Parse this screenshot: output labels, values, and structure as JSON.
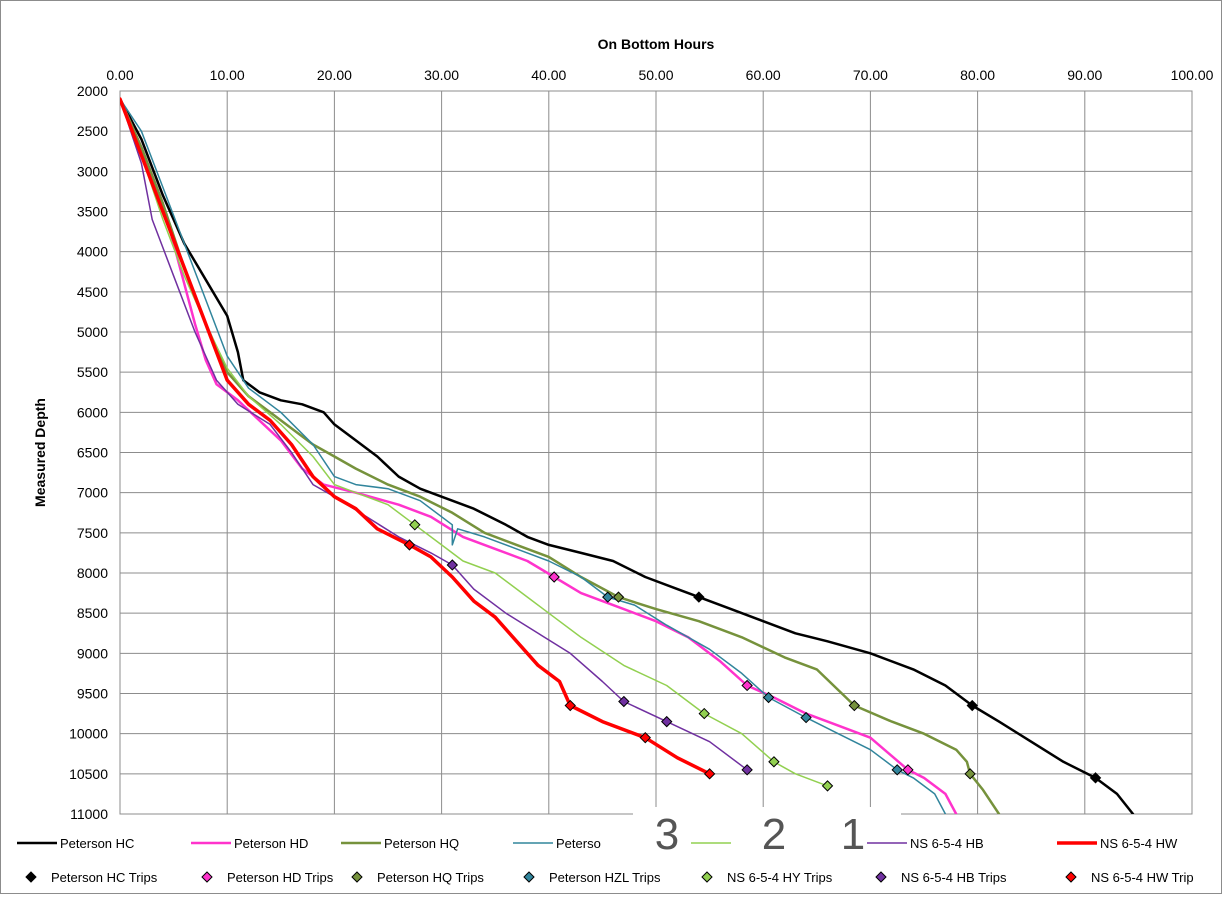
{
  "chart_data": {
    "type": "line",
    "title": "",
    "xlabel": "On Bottom Hours",
    "ylabel": "Measured Depth",
    "xlim": [
      0,
      100
    ],
    "ylim": [
      2000,
      11000
    ],
    "y_inverted": true,
    "x_axis_position": "top",
    "x_ticks": [
      "0.00",
      "10.00",
      "20.00",
      "30.00",
      "40.00",
      "50.00",
      "60.00",
      "70.00",
      "80.00",
      "90.00",
      "100.00"
    ],
    "y_ticks": [
      "2000",
      "2500",
      "3000",
      "3500",
      "4000",
      "4500",
      "5000",
      "5500",
      "6000",
      "6500",
      "7000",
      "7500",
      "8000",
      "8500",
      "9000",
      "9500",
      "10000",
      "10500",
      "11000"
    ],
    "grid": true,
    "legend_position": "bottom",
    "series": [
      {
        "name": "Peterson HC",
        "color": "#000000",
        "width": 2.5,
        "points": [
          [
            0,
            2100
          ],
          [
            2,
            2600
          ],
          [
            4,
            3300
          ],
          [
            6,
            3900
          ],
          [
            8,
            4350
          ],
          [
            10,
            4800
          ],
          [
            11,
            5250
          ],
          [
            11.5,
            5600
          ],
          [
            13,
            5750
          ],
          [
            15,
            5850
          ],
          [
            17,
            5900
          ],
          [
            19,
            6000
          ],
          [
            20,
            6150
          ],
          [
            22,
            6350
          ],
          [
            24,
            6550
          ],
          [
            26,
            6800
          ],
          [
            28,
            6950
          ],
          [
            30,
            7050
          ],
          [
            33,
            7200
          ],
          [
            36,
            7400
          ],
          [
            38,
            7550
          ],
          [
            40,
            7650
          ],
          [
            43,
            7750
          ],
          [
            46,
            7850
          ],
          [
            49,
            8050
          ],
          [
            52,
            8200
          ],
          [
            54,
            8300
          ],
          [
            57,
            8450
          ],
          [
            60,
            8600
          ],
          [
            63,
            8750
          ],
          [
            66,
            8850
          ],
          [
            70,
            9000
          ],
          [
            74,
            9200
          ],
          [
            77,
            9400
          ],
          [
            79.5,
            9650
          ],
          [
            82,
            9850
          ],
          [
            85,
            10100
          ],
          [
            88,
            10350
          ],
          [
            91,
            10550
          ],
          [
            93,
            10750
          ],
          [
            94.5,
            11000
          ]
        ]
      },
      {
        "name": "Peterson HD",
        "color": "#ff33cc",
        "width": 2.5,
        "points": [
          [
            0,
            2100
          ],
          [
            2,
            2700
          ],
          [
            4,
            3400
          ],
          [
            5,
            3900
          ],
          [
            6,
            4400
          ],
          [
            7,
            4900
          ],
          [
            8,
            5350
          ],
          [
            9,
            5650
          ],
          [
            11,
            5850
          ],
          [
            13,
            6100
          ],
          [
            15,
            6350
          ],
          [
            17,
            6700
          ],
          [
            19,
            6900
          ],
          [
            22,
            7000
          ],
          [
            26,
            7150
          ],
          [
            29,
            7300
          ],
          [
            32,
            7550
          ],
          [
            35,
            7700
          ],
          [
            38,
            7850
          ],
          [
            40.5,
            8050
          ],
          [
            43,
            8250
          ],
          [
            46,
            8400
          ],
          [
            50,
            8600
          ],
          [
            53,
            8800
          ],
          [
            56,
            9100
          ],
          [
            58.5,
            9400
          ],
          [
            61,
            9550
          ],
          [
            64,
            9750
          ],
          [
            67,
            9900
          ],
          [
            70,
            10050
          ],
          [
            73.5,
            10450
          ],
          [
            75,
            10550
          ],
          [
            77,
            10750
          ],
          [
            78,
            11000
          ]
        ]
      },
      {
        "name": "Peterson HQ",
        "color": "#76923c",
        "width": 2.5,
        "points": [
          [
            0,
            2100
          ],
          [
            2,
            2700
          ],
          [
            4,
            3400
          ],
          [
            6,
            4200
          ],
          [
            8,
            4900
          ],
          [
            10,
            5500
          ],
          [
            12,
            5800
          ],
          [
            14,
            6000
          ],
          [
            16,
            6200
          ],
          [
            18,
            6400
          ],
          [
            20,
            6550
          ],
          [
            22,
            6700
          ],
          [
            25,
            6900
          ],
          [
            28,
            7050
          ],
          [
            31,
            7250
          ],
          [
            34,
            7500
          ],
          [
            37,
            7650
          ],
          [
            40,
            7800
          ],
          [
            43,
            8050
          ],
          [
            46.5,
            8300
          ],
          [
            50,
            8450
          ],
          [
            54,
            8600
          ],
          [
            58,
            8800
          ],
          [
            62,
            9050
          ],
          [
            65,
            9200
          ],
          [
            68.5,
            9650
          ],
          [
            72,
            9850
          ],
          [
            75,
            10000
          ],
          [
            78,
            10200
          ],
          [
            79,
            10350
          ],
          [
            79.3,
            10500
          ],
          [
            80.5,
            10700
          ],
          [
            82,
            11000
          ]
        ]
      },
      {
        "name": "Peterson HZL",
        "color": "#31859c",
        "width": 1.5,
        "points": [
          [
            0,
            2100
          ],
          [
            2,
            2500
          ],
          [
            4,
            3200
          ],
          [
            6,
            3900
          ],
          [
            8,
            4600
          ],
          [
            10,
            5300
          ],
          [
            12,
            5700
          ],
          [
            15,
            6000
          ],
          [
            18,
            6400
          ],
          [
            20,
            6800
          ],
          [
            22,
            6900
          ],
          [
            25,
            6950
          ],
          [
            28,
            7100
          ],
          [
            31,
            7400
          ],
          [
            31,
            7650
          ],
          [
            31.5,
            7450
          ],
          [
            34,
            7550
          ],
          [
            37,
            7700
          ],
          [
            40,
            7850
          ],
          [
            43,
            8050
          ],
          [
            45.5,
            8300
          ],
          [
            48,
            8400
          ],
          [
            51,
            8650
          ],
          [
            55,
            8950
          ],
          [
            58,
            9250
          ],
          [
            60.5,
            9550
          ],
          [
            64,
            9800
          ],
          [
            67,
            10000
          ],
          [
            70,
            10200
          ],
          [
            72.5,
            10450
          ],
          [
            74,
            10550
          ],
          [
            76,
            10750
          ],
          [
            77,
            11000
          ]
        ]
      },
      {
        "name": "NS 6-5-4 HY",
        "color": "#92d050",
        "width": 1.5,
        "points": [
          [
            0,
            2100
          ],
          [
            2,
            2800
          ],
          [
            4,
            3600
          ],
          [
            6,
            4300
          ],
          [
            8,
            4900
          ],
          [
            10,
            5450
          ],
          [
            12,
            5800
          ],
          [
            15,
            6150
          ],
          [
            18,
            6550
          ],
          [
            20,
            6900
          ],
          [
            22,
            7000
          ],
          [
            25,
            7150
          ],
          [
            27.5,
            7400
          ],
          [
            30,
            7650
          ],
          [
            32,
            7850
          ],
          [
            35,
            8000
          ],
          [
            38,
            8300
          ],
          [
            40,
            8500
          ],
          [
            43,
            8800
          ],
          [
            47,
            9150
          ],
          [
            51,
            9400
          ],
          [
            54.5,
            9750
          ],
          [
            58,
            10000
          ],
          [
            61,
            10350
          ],
          [
            63,
            10500
          ],
          [
            66,
            10650
          ]
        ]
      },
      {
        "name": "NS 6-5-4 HB",
        "color": "#7030a0",
        "width": 1.5,
        "points": [
          [
            0,
            2100
          ],
          [
            2,
            2900
          ],
          [
            3,
            3600
          ],
          [
            5,
            4300
          ],
          [
            7,
            5000
          ],
          [
            9,
            5600
          ],
          [
            11,
            5900
          ],
          [
            14,
            6150
          ],
          [
            16,
            6500
          ],
          [
            18,
            6900
          ],
          [
            20,
            7050
          ],
          [
            23,
            7300
          ],
          [
            26,
            7550
          ],
          [
            29,
            7750
          ],
          [
            31,
            7900
          ],
          [
            33,
            8200
          ],
          [
            36,
            8500
          ],
          [
            39,
            8750
          ],
          [
            42,
            9000
          ],
          [
            45,
            9350
          ],
          [
            47,
            9600
          ],
          [
            51,
            9850
          ],
          [
            55,
            10100
          ],
          [
            58.5,
            10450
          ]
        ]
      },
      {
        "name": "NS 6-5-4 HW",
        "color": "#ff0000",
        "width": 3.5,
        "points": [
          [
            0,
            2100
          ],
          [
            2,
            2800
          ],
          [
            4,
            3500
          ],
          [
            6,
            4200
          ],
          [
            8,
            4900
          ],
          [
            10,
            5600
          ],
          [
            12,
            5900
          ],
          [
            14,
            6100
          ],
          [
            16,
            6400
          ],
          [
            18,
            6800
          ],
          [
            20,
            7050
          ],
          [
            22,
            7200
          ],
          [
            24,
            7450
          ],
          [
            27,
            7650
          ],
          [
            29,
            7800
          ],
          [
            31,
            8050
          ],
          [
            33,
            8350
          ],
          [
            35,
            8550
          ],
          [
            37,
            8850
          ],
          [
            39,
            9150
          ],
          [
            41,
            9350
          ],
          [
            42,
            9650
          ],
          [
            45,
            9850
          ],
          [
            49,
            10050
          ],
          [
            52,
            10300
          ],
          [
            55,
            10500
          ]
        ]
      }
    ],
    "trips": [
      {
        "name": "Peterson HC Trips",
        "color": "#000000",
        "points": [
          [
            54,
            8300
          ],
          [
            79.5,
            9650
          ],
          [
            91,
            10550
          ]
        ]
      },
      {
        "name": "Peterson HD Trips",
        "color": "#ff33cc",
        "points": [
          [
            40.5,
            8050
          ],
          [
            58.5,
            9400
          ],
          [
            73.5,
            10450
          ]
        ]
      },
      {
        "name": "Peterson HQ Trips",
        "color": "#76923c",
        "points": [
          [
            46.5,
            8300
          ],
          [
            68.5,
            9650
          ],
          [
            79.3,
            10500
          ]
        ]
      },
      {
        "name": "Peterson HZL Trips",
        "color": "#31859c",
        "points": [
          [
            45.5,
            8300
          ],
          [
            60.5,
            9550
          ],
          [
            64,
            9800
          ],
          [
            72.5,
            10450
          ]
        ]
      },
      {
        "name": "NS 6-5-4 HY Trips",
        "color": "#92d050",
        "points": [
          [
            27.5,
            7400
          ],
          [
            54.5,
            9750
          ],
          [
            61,
            10350
          ],
          [
            66,
            10650
          ]
        ]
      },
      {
        "name": "NS 6-5-4 HB Trips",
        "color": "#7030a0",
        "points": [
          [
            31,
            7900
          ],
          [
            47,
            9600
          ],
          [
            51,
            9850
          ],
          [
            58.5,
            10450
          ]
        ]
      },
      {
        "name": "NS 6-5-4 HW Trips",
        "color": "#ff0000",
        "points": [
          [
            27,
            7650
          ],
          [
            42,
            9650
          ],
          [
            49,
            10050
          ],
          [
            55,
            10500
          ]
        ]
      }
    ],
    "legend_row1": [
      {
        "label": "Peterson HC",
        "color": "#000000"
      },
      {
        "label": "Peterson HD",
        "color": "#ff33cc"
      },
      {
        "label": "Peterson HQ",
        "color": "#76923c"
      },
      {
        "label": "Peterso",
        "color": "#31859c"
      },
      {
        "label": "",
        "color": "#92d050"
      },
      {
        "label": "NS 6-5-4 HB",
        "color": "#7030a0"
      },
      {
        "label": "NS 6-5-4 HW",
        "color": "#ff0000"
      }
    ],
    "legend_row2": [
      {
        "label": "Peterson HC Trips",
        "color": "#000000"
      },
      {
        "label": "Peterson HD Trips",
        "color": "#ff33cc"
      },
      {
        "label": "Peterson HQ Trips",
        "color": "#76923c"
      },
      {
        "label": "Peterson HZL Trips",
        "color": "#31859c"
      },
      {
        "label": "NS 6-5-4 HY Trips",
        "color": "#92d050"
      },
      {
        "label": "NS 6-5-4 HB Trips",
        "color": "#7030a0"
      },
      {
        "label": "NS 6-5-4 HW Trip",
        "color": "#ff0000"
      }
    ],
    "overlay_numbers": [
      "3",
      "2",
      "1"
    ]
  }
}
